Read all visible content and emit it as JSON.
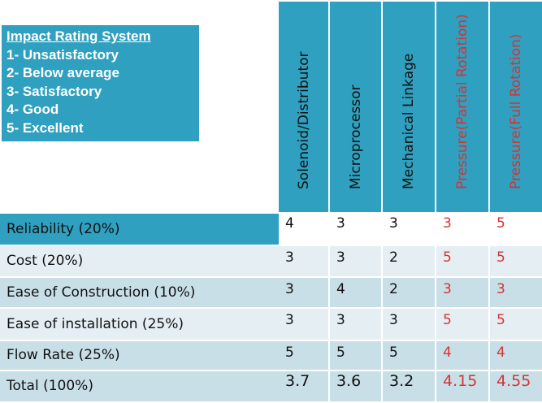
{
  "legend": {
    "title": "Impact Rating System",
    "items": [
      "1- Unsatisfactory",
      "2- Below average",
      "3- Satisfactory",
      "4- Good",
      "5- Excellent"
    ]
  },
  "columns": [
    {
      "label": "Solenoid/Distributor",
      "color": "#111111"
    },
    {
      "label": "Microprocessor",
      "color": "#111111"
    },
    {
      "label": "Mechanical Linkage",
      "color": "#111111"
    },
    {
      "label": "Pressure(Partial Rotation)",
      "color": "#d43434"
    },
    {
      "label": "Pressure(Full Rotation)",
      "color": "#d43434"
    }
  ],
  "rows": [
    {
      "label": "Reliability (20%)",
      "values": [
        "4",
        "3",
        "3",
        "3",
        "5"
      ]
    },
    {
      "label": "Cost (20%)",
      "values": [
        "3",
        "3",
        "2",
        "5",
        "5"
      ]
    },
    {
      "label": "Ease of Construction (10%)",
      "values": [
        "3",
        "4",
        "2",
        "3",
        "3"
      ]
    },
    {
      "label": "Ease of installation (25%)",
      "values": [
        "3",
        "3",
        "3",
        "5",
        "5"
      ]
    },
    {
      "label": "Flow Rate (25%)",
      "values": [
        "5",
        "5",
        "5",
        "4",
        "4"
      ]
    },
    {
      "label": "Total (100%)",
      "values": [
        "3.7",
        "3.6",
        "3.2",
        "4.15",
        "4.55"
      ]
    }
  ],
  "colors": {
    "header_bg": "#2fa0bf",
    "row_dark": "#c9dfe7",
    "row_light": "#e5eff3",
    "highlight_row": "#2fa0bf",
    "legend_bg": "#2fa0bf",
    "red_text": "#d43434"
  }
}
